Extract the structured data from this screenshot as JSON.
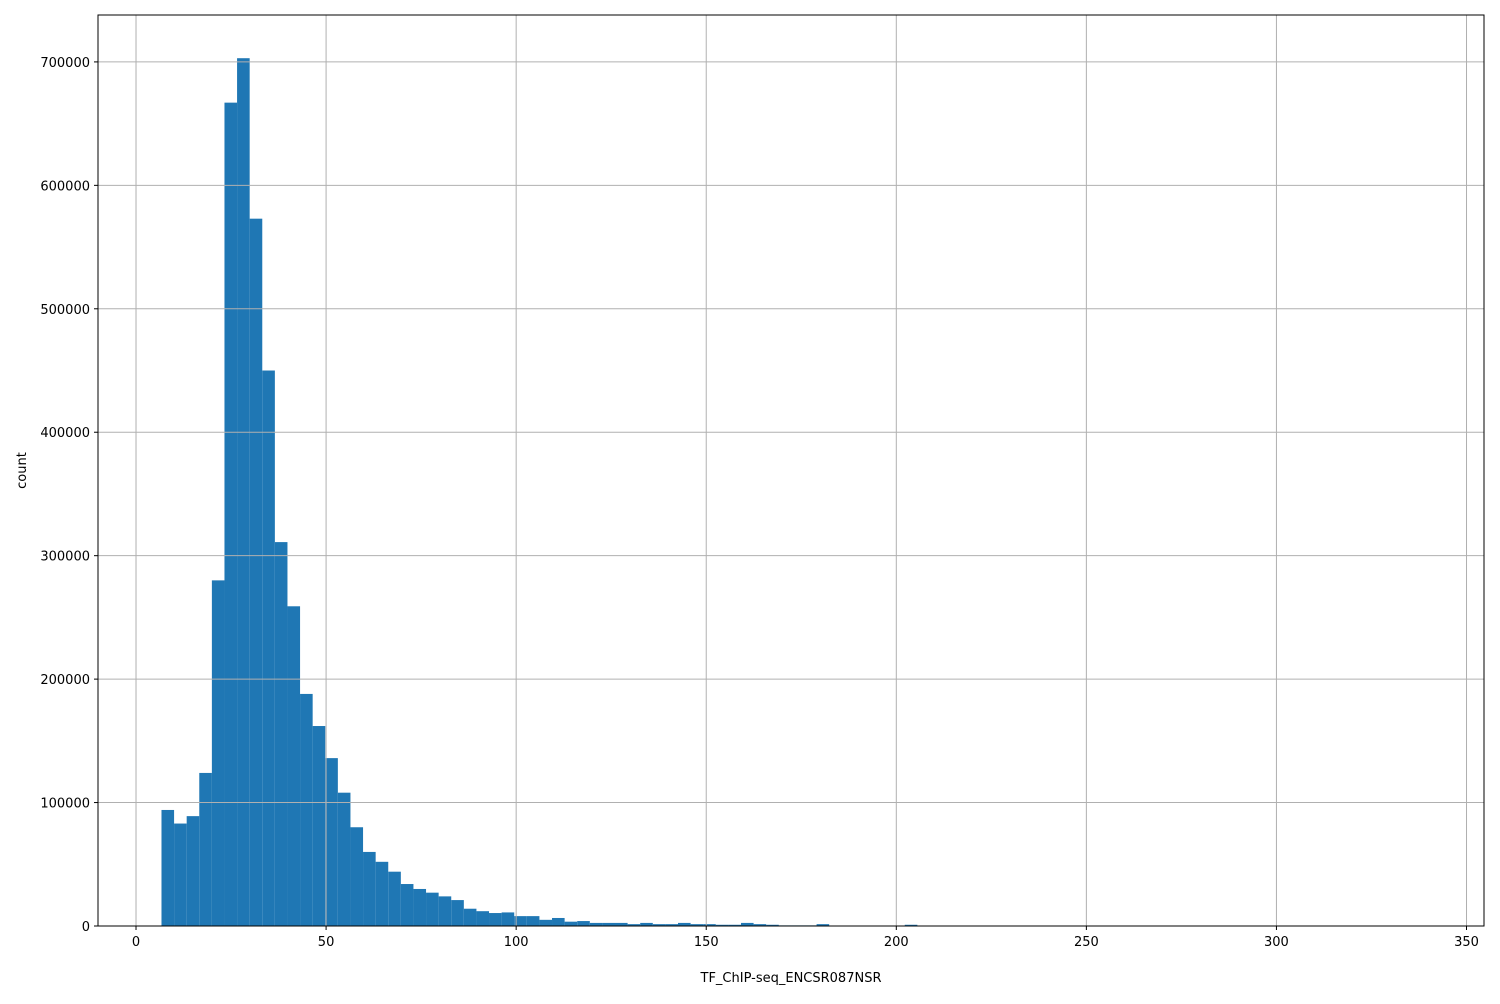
{
  "chart_data": {
    "type": "bar",
    "subtype": "histogram",
    "title": "",
    "xlabel": "TF_ChIP-seq_ENCSR087NSR",
    "ylabel": "count",
    "xlim": [
      -10,
      354.6
    ],
    "ylim": [
      0,
      738000
    ],
    "grid": true,
    "bar_color": "#1f77b4",
    "grid_color": "#b0b0b0",
    "bin_start": 6.7,
    "bin_width": 3.314,
    "x_ticks": [
      0,
      50,
      100,
      150,
      200,
      250,
      300,
      350
    ],
    "y_ticks": [
      0,
      100000,
      200000,
      300000,
      400000,
      500000,
      600000,
      700000
    ],
    "values": [
      94000,
      83000,
      89000,
      124000,
      280000,
      667000,
      703000,
      573000,
      450000,
      311000,
      259000,
      188000,
      162000,
      136000,
      108000,
      80000,
      60000,
      52000,
      44000,
      34000,
      30000,
      27000,
      24000,
      21000,
      14000,
      12000,
      10500,
      11000,
      8000,
      8000,
      5000,
      6500,
      3500,
      4000,
      2500,
      2500,
      2500,
      1500,
      2500,
      1500,
      1500,
      2500,
      1500,
      1500,
      1000,
      1000,
      2500,
      1500,
      1000,
      500,
      500,
      500,
      1500,
      200,
      100,
      100,
      100,
      100,
      100,
      1000,
      0,
      0,
      0,
      0,
      0,
      0,
      0,
      0,
      0,
      0,
      0,
      0,
      0,
      0,
      0,
      0,
      0,
      0,
      0,
      0,
      0,
      0,
      0,
      0,
      0,
      0,
      0,
      0,
      0,
      0,
      0,
      0,
      0,
      0,
      0,
      0,
      0,
      0,
      0,
      0
    ]
  }
}
